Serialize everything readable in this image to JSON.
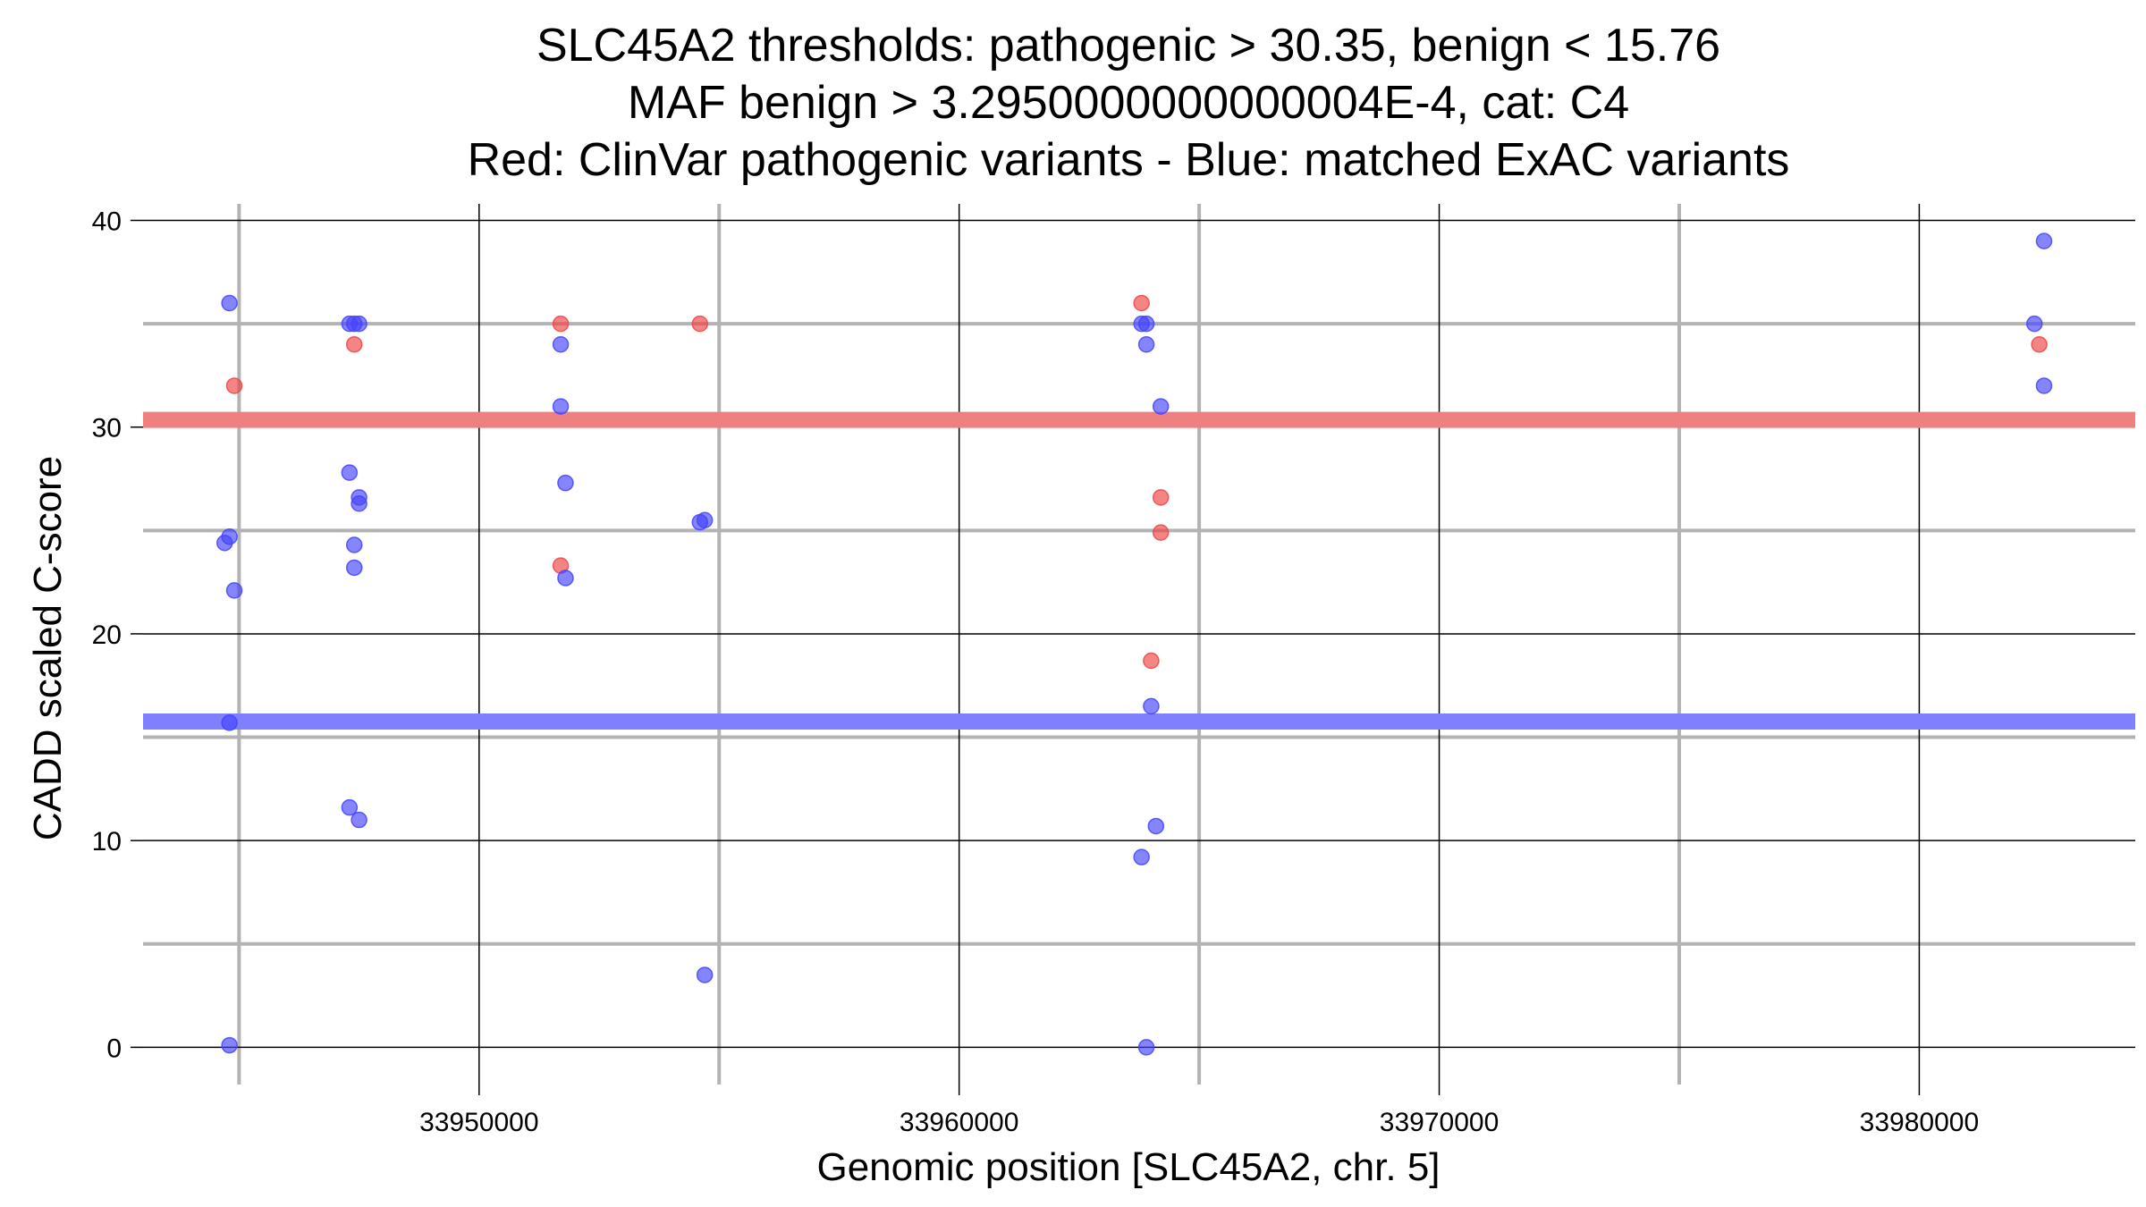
{
  "chart_data": {
    "type": "scatter",
    "title_lines": [
      "SLC45A2 thresholds: pathogenic > 30.35, benign < 15.76",
      "MAF benign > 3.2950000000000004E-4, cat: C4",
      "Red: ClinVar pathogenic variants - Blue: matched ExAC variants"
    ],
    "xlabel": "Genomic position [SLC45A2, chr. 5]",
    "ylabel": "CADD scaled C-score",
    "xlim": [
      33943000,
      33984500
    ],
    "ylim": [
      -1.8,
      40.8
    ],
    "x_major_ticks": [
      33950000,
      33960000,
      33970000,
      33980000
    ],
    "x_tick_labels": [
      "33950000",
      "33960000",
      "33970000",
      "33980000"
    ],
    "x_minor_grid": [
      33945000,
      33955000,
      33965000,
      33975000
    ],
    "y_major_ticks": [
      0,
      10,
      20,
      30,
      40
    ],
    "y_tick_labels": [
      "0",
      "10",
      "20",
      "30",
      "40"
    ],
    "y_minor_grid": [
      5,
      15,
      25,
      35
    ],
    "grid": true,
    "legend": "none",
    "thresholds": [
      {
        "value": 30.35,
        "color": "#f08080"
      },
      {
        "value": 15.76,
        "color": "#8080ff"
      }
    ],
    "series": [
      {
        "color": "#ef4444",
        "points": [
          {
            "x": 33944900,
            "y": 32
          },
          {
            "x": 33947400,
            "y": 34
          },
          {
            "x": 33951700,
            "y": 35
          },
          {
            "x": 33951700,
            "y": 23.3
          },
          {
            "x": 33954600,
            "y": 35
          },
          {
            "x": 33963800,
            "y": 36
          },
          {
            "x": 33964200,
            "y": 26.6
          },
          {
            "x": 33964200,
            "y": 24.9
          },
          {
            "x": 33964000,
            "y": 18.7
          },
          {
            "x": 33982500,
            "y": 34
          }
        ]
      },
      {
        "color": "#4444ff",
        "points": [
          {
            "x": 33944800,
            "y": 36
          },
          {
            "x": 33944800,
            "y": 24.7
          },
          {
            "x": 33944700,
            "y": 24.4
          },
          {
            "x": 33944900,
            "y": 22.1
          },
          {
            "x": 33944800,
            "y": 15.7
          },
          {
            "x": 33944800,
            "y": 0.1
          },
          {
            "x": 33947300,
            "y": 35
          },
          {
            "x": 33947400,
            "y": 35
          },
          {
            "x": 33947500,
            "y": 35
          },
          {
            "x": 33947300,
            "y": 27.8
          },
          {
            "x": 33947500,
            "y": 26.6
          },
          {
            "x": 33947500,
            "y": 26.3
          },
          {
            "x": 33947400,
            "y": 24.3
          },
          {
            "x": 33947400,
            "y": 23.2
          },
          {
            "x": 33947300,
            "y": 11.6
          },
          {
            "x": 33947500,
            "y": 11
          },
          {
            "x": 33951700,
            "y": 34
          },
          {
            "x": 33951700,
            "y": 31
          },
          {
            "x": 33951800,
            "y": 27.3
          },
          {
            "x": 33951800,
            "y": 22.7
          },
          {
            "x": 33954600,
            "y": 25.4
          },
          {
            "x": 33954700,
            "y": 25.5
          },
          {
            "x": 33954700,
            "y": 3.5
          },
          {
            "x": 33963800,
            "y": 35
          },
          {
            "x": 33963900,
            "y": 35
          },
          {
            "x": 33963900,
            "y": 34
          },
          {
            "x": 33964200,
            "y": 31
          },
          {
            "x": 33964000,
            "y": 16.5
          },
          {
            "x": 33964100,
            "y": 10.7
          },
          {
            "x": 33963800,
            "y": 9.2
          },
          {
            "x": 33963900,
            "y": 0
          },
          {
            "x": 33982600,
            "y": 39
          },
          {
            "x": 33982400,
            "y": 35
          },
          {
            "x": 33982600,
            "y": 32
          }
        ]
      }
    ]
  }
}
